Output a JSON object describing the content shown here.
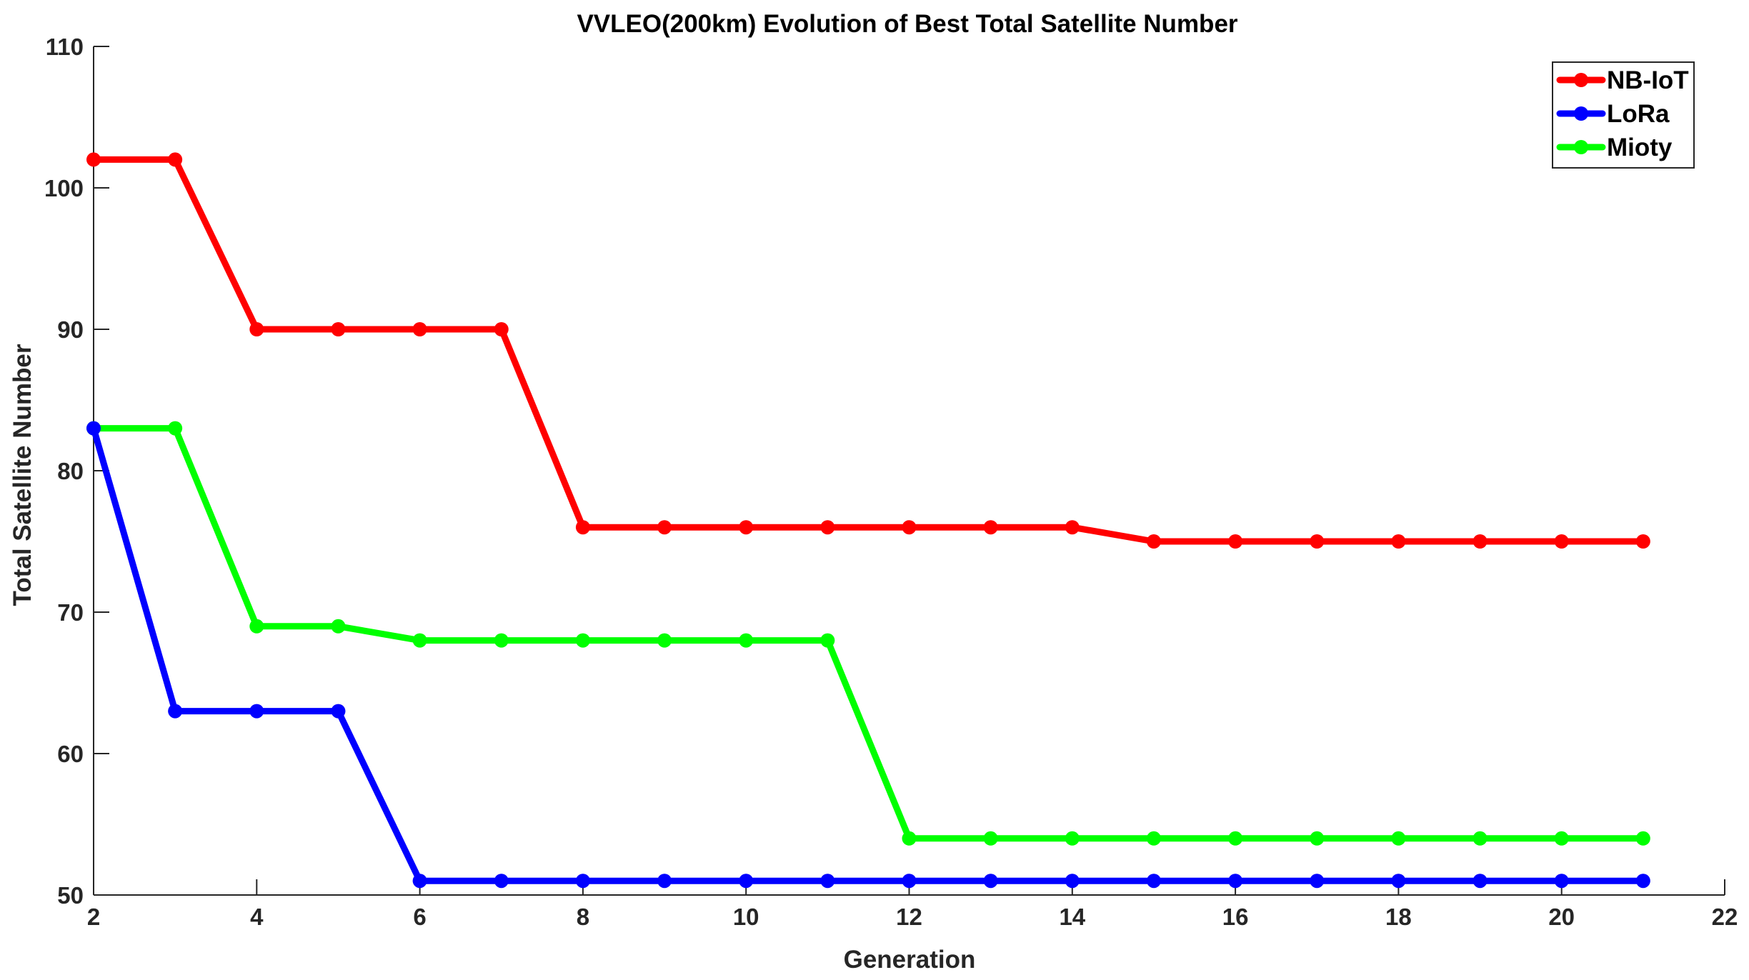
{
  "chart_data": {
    "type": "line",
    "title": "VVLEO(200km) Evolution of Best Total Satellite Number",
    "xlabel": "Generation",
    "ylabel": "Total Satellite Number",
    "xlim": [
      2,
      22
    ],
    "ylim": [
      50,
      110
    ],
    "xticks": [
      2,
      4,
      6,
      8,
      10,
      12,
      14,
      16,
      18,
      20,
      22
    ],
    "yticks": [
      50,
      60,
      70,
      80,
      90,
      100,
      110
    ],
    "grid": false,
    "legend_position": "top-right",
    "x": [
      2,
      3,
      4,
      5,
      6,
      7,
      8,
      9,
      10,
      11,
      12,
      13,
      14,
      15,
      16,
      17,
      18,
      19,
      20,
      21
    ],
    "series": [
      {
        "name": "NB-IoT",
        "color": "#ff0000",
        "values": [
          102,
          102,
          90,
          90,
          90,
          90,
          76,
          76,
          76,
          76,
          76,
          76,
          76,
          75,
          75,
          75,
          75,
          75,
          75,
          75
        ]
      },
      {
        "name": "LoRa",
        "color": "#0000ff",
        "values": [
          83,
          63,
          63,
          63,
          51,
          51,
          51,
          51,
          51,
          51,
          51,
          51,
          51,
          51,
          51,
          51,
          51,
          51,
          51,
          51
        ]
      },
      {
        "name": "Mioty",
        "color": "#00ff00",
        "values": [
          83,
          83,
          69,
          69,
          68,
          68,
          68,
          68,
          68,
          68,
          54,
          54,
          54,
          54,
          54,
          54,
          54,
          54,
          54,
          54
        ]
      }
    ]
  }
}
